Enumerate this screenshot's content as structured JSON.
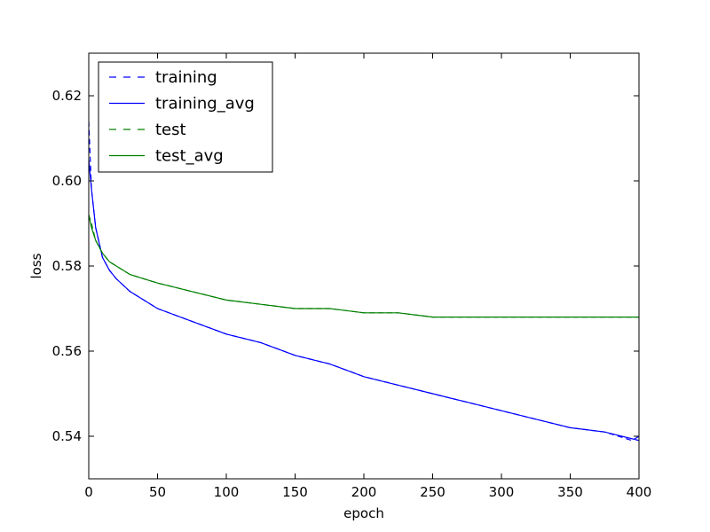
{
  "chart_data": {
    "type": "line",
    "title": "",
    "xlabel": "epoch",
    "ylabel": "loss",
    "xlim": [
      0,
      400
    ],
    "ylim": [
      0.53,
      0.63
    ],
    "xticks": [
      0,
      50,
      100,
      150,
      200,
      250,
      300,
      350,
      400
    ],
    "yticks": [
      0.54,
      0.56,
      0.58,
      0.6,
      0.62
    ],
    "ytick_labels": [
      "0.54",
      "0.56",
      "0.58",
      "0.60",
      "0.62"
    ],
    "grid": false,
    "legend_position": "top-left",
    "series": [
      {
        "name": "training",
        "style": "dashed",
        "color": "#0000ff",
        "x": [
          0,
          2,
          5,
          10,
          15,
          20,
          30,
          40,
          50,
          75,
          100,
          125,
          150,
          175,
          200,
          225,
          250,
          275,
          300,
          325,
          350,
          375,
          395,
          400
        ],
        "y": [
          0.614,
          0.598,
          0.589,
          0.582,
          0.579,
          0.577,
          0.574,
          0.572,
          0.57,
          0.567,
          0.564,
          0.562,
          0.559,
          0.557,
          0.554,
          0.552,
          0.55,
          0.548,
          0.546,
          0.544,
          0.542,
          0.541,
          0.539,
          0.54
        ]
      },
      {
        "name": "training_avg",
        "style": "solid",
        "color": "#0000ff",
        "x": [
          0,
          2,
          5,
          10,
          15,
          20,
          30,
          40,
          50,
          75,
          100,
          125,
          150,
          175,
          200,
          225,
          250,
          275,
          300,
          325,
          350,
          375,
          400
        ],
        "y": [
          0.605,
          0.598,
          0.589,
          0.582,
          0.579,
          0.577,
          0.574,
          0.572,
          0.57,
          0.567,
          0.564,
          0.562,
          0.559,
          0.557,
          0.554,
          0.552,
          0.55,
          0.548,
          0.546,
          0.544,
          0.542,
          0.541,
          0.539
        ]
      },
      {
        "name": "test",
        "style": "dashed",
        "color": "#008000",
        "x": [
          0,
          2,
          5,
          10,
          15,
          20,
          30,
          40,
          50,
          75,
          100,
          125,
          150,
          175,
          200,
          225,
          250,
          275,
          300,
          325,
          350,
          375,
          400
        ],
        "y": [
          0.592,
          0.59,
          0.586,
          0.583,
          0.581,
          0.58,
          0.578,
          0.577,
          0.576,
          0.574,
          0.572,
          0.571,
          0.57,
          0.57,
          0.569,
          0.569,
          0.568,
          0.568,
          0.568,
          0.568,
          0.568,
          0.568,
          0.568
        ]
      },
      {
        "name": "test_avg",
        "style": "solid",
        "color": "#008000",
        "x": [
          0,
          2,
          5,
          10,
          15,
          20,
          30,
          40,
          50,
          75,
          100,
          125,
          150,
          175,
          200,
          225,
          250,
          275,
          300,
          325,
          350,
          375,
          400
        ],
        "y": [
          0.592,
          0.589,
          0.586,
          0.583,
          0.581,
          0.58,
          0.578,
          0.577,
          0.576,
          0.574,
          0.572,
          0.571,
          0.57,
          0.57,
          0.569,
          0.569,
          0.568,
          0.568,
          0.568,
          0.568,
          0.568,
          0.568,
          0.568
        ]
      }
    ]
  }
}
